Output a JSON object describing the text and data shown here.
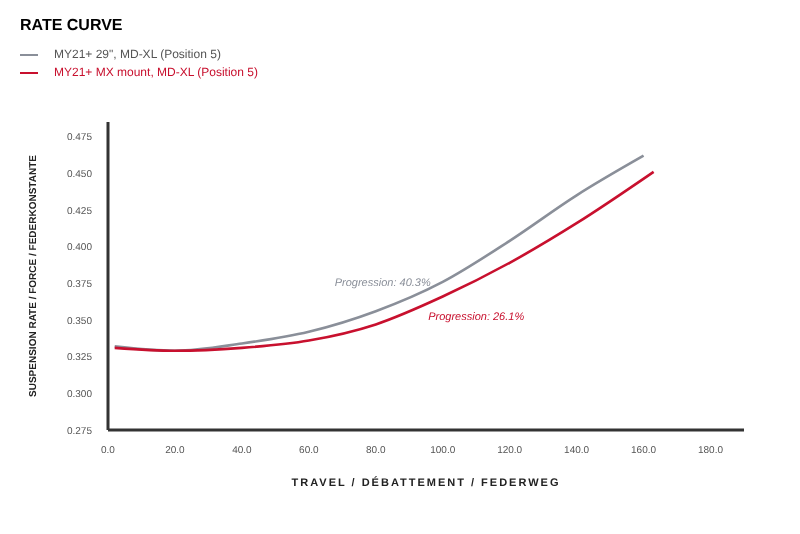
{
  "chart_data": {
    "type": "line",
    "title": "RATE CURVE",
    "xlabel": "TRAVEL  /  DÉBATTEMENT  /  FEDERWEG",
    "ylabel": "SUSPENSION RATE  /  FORCE  /  FEDERKONSTANTE",
    "series": [
      {
        "name": "MY21+ 29\", MD-XL (Position 5)",
        "color": "#8a8f99",
        "x": [
          2,
          20,
          40,
          60,
          80,
          100,
          120,
          140,
          160
        ],
        "values": [
          0.332,
          0.329,
          0.334,
          0.342,
          0.356,
          0.376,
          0.404,
          0.435,
          0.462
        ]
      },
      {
        "name": "MY21+ MX mount, MD-XL (Position 5)",
        "color": "#c8102e",
        "x": [
          2,
          20,
          40,
          60,
          80,
          100,
          120,
          140,
          163
        ],
        "values": [
          0.331,
          0.329,
          0.331,
          0.336,
          0.347,
          0.366,
          0.389,
          0.416,
          0.451
        ]
      }
    ],
    "xlim": [
      0,
      190
    ],
    "xticks": [
      {
        "value": 0,
        "label": "0.0"
      },
      {
        "value": 20,
        "label": "20.0"
      },
      {
        "value": 40,
        "label": "40.0"
      },
      {
        "value": 60,
        "label": "60.0"
      },
      {
        "value": 80,
        "label": "80.0"
      },
      {
        "value": 100,
        "label": "100.0"
      },
      {
        "value": 120,
        "label": "120.0"
      },
      {
        "value": 140,
        "label": "140.0"
      },
      {
        "value": 160,
        "label": "160.0"
      },
      {
        "value": 180,
        "label": "180.0"
      }
    ],
    "ylim": [
      0.275,
      0.485
    ],
    "yticks": [
      {
        "value": 0.275,
        "label": "0.275"
      },
      {
        "value": 0.3,
        "label": "0.300"
      },
      {
        "value": 0.325,
        "label": "0.325"
      },
      {
        "value": 0.35,
        "label": "0.350"
      },
      {
        "value": 0.375,
        "label": "0.375"
      },
      {
        "value": 0.4,
        "label": "0.400"
      },
      {
        "value": 0.425,
        "label": "0.425"
      },
      {
        "value": 0.45,
        "label": "0.450"
      },
      {
        "value": 0.475,
        "label": "0.475"
      }
    ],
    "annotations": [
      {
        "text": "Progression: 40.3%",
        "x": 100,
        "y": 0.376
      },
      {
        "text": "Progression: 26.1%",
        "x": 110,
        "y": 0.377
      }
    ],
    "legend": "top left",
    "grid": false,
    "marker": "none",
    "line_style": "solid"
  }
}
